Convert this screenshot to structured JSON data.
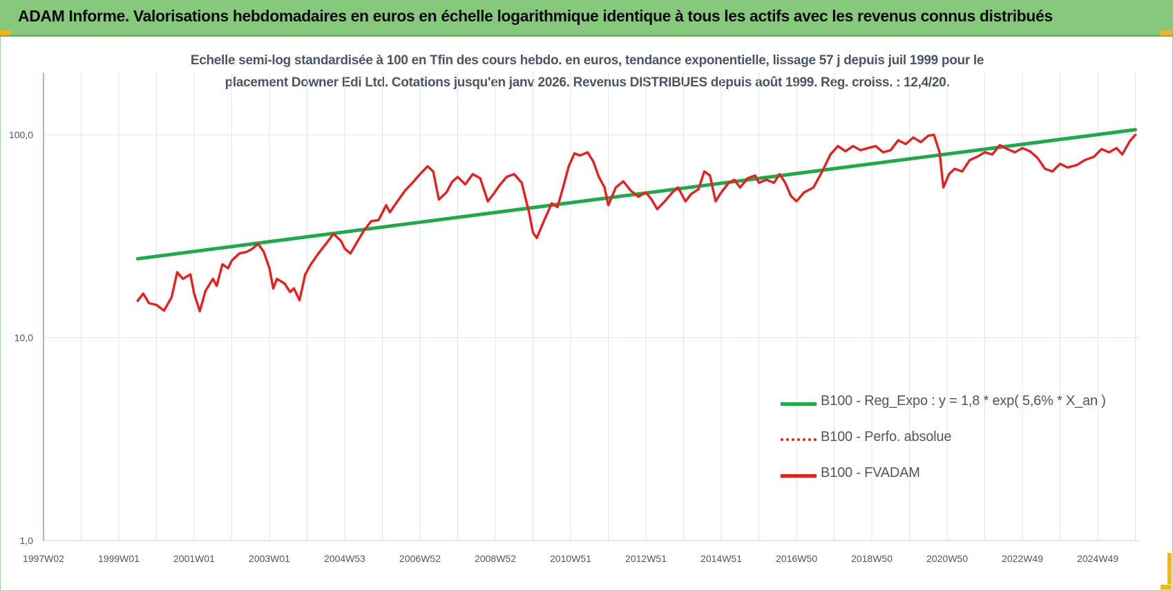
{
  "banner": {
    "title": "ADAM Informe. Valorisations hebdomadaires en euros en échelle logarithmique identique à tous les actifs avec les revenus connus distribués"
  },
  "chart_data": {
    "type": "line",
    "title_line1": "Echelle semi-log standardisée à 100 en Tfin des cours hebdo. en euros, tendance exponentielle, lissage 57 j depuis juil 1999 pour le",
    "title_line2": "placement Downer Edi Ltd. Cotations jusqu'en janv 2026. Revenus DISTRIBUES depuis août 1999. Reg. croiss. : 12,4/20.",
    "y_scale": "log",
    "ylim": [
      1,
      200
    ],
    "y_ticks": [
      {
        "value": 1,
        "label": "1,0"
      },
      {
        "value": 10,
        "label": "10,0"
      },
      {
        "value": 100,
        "label": "100,0"
      }
    ],
    "xlim": [
      1997.0,
      2026.1
    ],
    "x_ticks": [
      {
        "value": 1997.0,
        "label": "1997W02"
      },
      {
        "value": 1999.0,
        "label": "1999W01"
      },
      {
        "value": 2001.0,
        "label": "2001W01"
      },
      {
        "value": 2003.0,
        "label": "2003W01"
      },
      {
        "value": 2005.0,
        "label": "2004W53"
      },
      {
        "value": 2007.0,
        "label": "2006W52"
      },
      {
        "value": 2009.0,
        "label": "2008W52"
      },
      {
        "value": 2011.0,
        "label": "2010W51"
      },
      {
        "value": 2013.0,
        "label": "2012W51"
      },
      {
        "value": 2015.0,
        "label": "2014W51"
      },
      {
        "value": 2017.0,
        "label": "2016W50"
      },
      {
        "value": 2019.0,
        "label": "2018W50"
      },
      {
        "value": 2021.0,
        "label": "2020W50"
      },
      {
        "value": 2023.0,
        "label": "2022W49"
      },
      {
        "value": 2025.0,
        "label": "2024W49"
      }
    ],
    "grid": true,
    "legend_position": "bottom-right",
    "series": [
      {
        "name": "B100 - Reg_Expo : y = 1,8 * exp( 5,6% *  X_an )",
        "color": "#1faa4a",
        "style": "solid",
        "points": [
          [
            1999.5,
            24.5
          ],
          [
            2026.0,
            106
          ]
        ]
      },
      {
        "name": "B100 - Perfo. absolue",
        "color": "#ee1c1c",
        "style": "dotted",
        "points": []
      },
      {
        "name": "B100 - FVADAM",
        "color": "#ee1c1c",
        "style": "solid",
        "points": [
          [
            1999.5,
            15.2
          ],
          [
            1999.65,
            16.5
          ],
          [
            1999.8,
            14.8
          ],
          [
            2000.0,
            14.5
          ],
          [
            2000.2,
            13.6
          ],
          [
            2000.4,
            15.8
          ],
          [
            2000.55,
            21.0
          ],
          [
            2000.7,
            19.5
          ],
          [
            2000.9,
            20.5
          ],
          [
            2001.0,
            16.5
          ],
          [
            2001.15,
            13.5
          ],
          [
            2001.3,
            17.0
          ],
          [
            2001.5,
            19.5
          ],
          [
            2001.6,
            18.0
          ],
          [
            2001.75,
            23.0
          ],
          [
            2001.9,
            22.0
          ],
          [
            2002.0,
            24.0
          ],
          [
            2002.2,
            26.0
          ],
          [
            2002.4,
            26.5
          ],
          [
            2002.55,
            27.5
          ],
          [
            2002.7,
            29.0
          ],
          [
            2002.85,
            26.5
          ],
          [
            2003.0,
            22.0
          ],
          [
            2003.1,
            17.5
          ],
          [
            2003.2,
            19.5
          ],
          [
            2003.4,
            18.5
          ],
          [
            2003.55,
            16.8
          ],
          [
            2003.65,
            17.5
          ],
          [
            2003.8,
            15.3
          ],
          [
            2003.95,
            20.5
          ],
          [
            2004.1,
            23.0
          ],
          [
            2004.3,
            26.0
          ],
          [
            2004.5,
            29.0
          ],
          [
            2004.7,
            32.5
          ],
          [
            2004.9,
            30.0
          ],
          [
            2005.0,
            27.5
          ],
          [
            2005.15,
            26.0
          ],
          [
            2005.3,
            29.0
          ],
          [
            2005.5,
            33.5
          ],
          [
            2005.7,
            37.5
          ],
          [
            2005.9,
            38.0
          ],
          [
            2006.1,
            45.0
          ],
          [
            2006.2,
            41.5
          ],
          [
            2006.4,
            47.0
          ],
          [
            2006.6,
            53.0
          ],
          [
            2006.8,
            58.0
          ],
          [
            2007.0,
            64.0
          ],
          [
            2007.2,
            70.0
          ],
          [
            2007.35,
            66.0
          ],
          [
            2007.5,
            48.0
          ],
          [
            2007.7,
            52.0
          ],
          [
            2007.85,
            58.5
          ],
          [
            2008.0,
            62.0
          ],
          [
            2008.2,
            57.0
          ],
          [
            2008.4,
            64.0
          ],
          [
            2008.6,
            61.0
          ],
          [
            2008.8,
            47.0
          ],
          [
            2008.95,
            51.0
          ],
          [
            2009.1,
            56.0
          ],
          [
            2009.3,
            62.0
          ],
          [
            2009.5,
            64.0
          ],
          [
            2009.7,
            58.0
          ],
          [
            2009.9,
            41.0
          ],
          [
            2010.0,
            33.0
          ],
          [
            2010.1,
            31.0
          ],
          [
            2010.3,
            38.0
          ],
          [
            2010.5,
            46.0
          ],
          [
            2010.65,
            44.0
          ],
          [
            2010.8,
            55.0
          ],
          [
            2010.95,
            70.0
          ],
          [
            2011.1,
            81.0
          ],
          [
            2011.25,
            79.0
          ],
          [
            2011.45,
            82.0
          ],
          [
            2011.6,
            74.0
          ],
          [
            2011.75,
            62.0
          ],
          [
            2011.9,
            55.0
          ],
          [
            2012.0,
            45.0
          ],
          [
            2012.2,
            55.0
          ],
          [
            2012.4,
            59.0
          ],
          [
            2012.6,
            53.0
          ],
          [
            2012.8,
            49.5
          ],
          [
            2013.0,
            52.0
          ],
          [
            2013.15,
            48.0
          ],
          [
            2013.3,
            43.0
          ],
          [
            2013.5,
            47.0
          ],
          [
            2013.7,
            52.0
          ],
          [
            2013.85,
            55.0
          ],
          [
            2014.05,
            47.0
          ],
          [
            2014.2,
            51.0
          ],
          [
            2014.4,
            54.0
          ],
          [
            2014.55,
            66.0
          ],
          [
            2014.7,
            63.0
          ],
          [
            2014.85,
            47.0
          ],
          [
            2015.0,
            52.0
          ],
          [
            2015.2,
            58.0
          ],
          [
            2015.35,
            60.0
          ],
          [
            2015.5,
            55.0
          ],
          [
            2015.7,
            61.0
          ],
          [
            2015.9,
            63.0
          ],
          [
            2016.0,
            58.0
          ],
          [
            2016.2,
            60.0
          ],
          [
            2016.4,
            58.0
          ],
          [
            2016.55,
            64.0
          ],
          [
            2016.7,
            58.0
          ],
          [
            2016.85,
            50.0
          ],
          [
            2017.0,
            47.0
          ],
          [
            2017.2,
            52.0
          ],
          [
            2017.45,
            55.0
          ],
          [
            2017.7,
            67.0
          ],
          [
            2017.9,
            80.0
          ],
          [
            2018.1,
            88.0
          ],
          [
            2018.3,
            83.0
          ],
          [
            2018.5,
            88.0
          ],
          [
            2018.7,
            84.0
          ],
          [
            2018.9,
            86.0
          ],
          [
            2019.1,
            88.0
          ],
          [
            2019.3,
            82.0
          ],
          [
            2019.5,
            84.0
          ],
          [
            2019.7,
            94.0
          ],
          [
            2019.9,
            90.0
          ],
          [
            2020.1,
            97.0
          ],
          [
            2020.3,
            92.0
          ],
          [
            2020.5,
            99.0
          ],
          [
            2020.65,
            100.0
          ],
          [
            2020.8,
            82.0
          ],
          [
            2020.9,
            55.0
          ],
          [
            2021.05,
            64.0
          ],
          [
            2021.2,
            68.0
          ],
          [
            2021.4,
            66.0
          ],
          [
            2021.6,
            75.0
          ],
          [
            2021.8,
            78.0
          ],
          [
            2022.0,
            82.0
          ],
          [
            2022.2,
            80.0
          ],
          [
            2022.4,
            89.0
          ],
          [
            2022.6,
            85.0
          ],
          [
            2022.8,
            82.0
          ],
          [
            2023.0,
            86.0
          ],
          [
            2023.2,
            83.0
          ],
          [
            2023.4,
            77.0
          ],
          [
            2023.6,
            68.0
          ],
          [
            2023.8,
            66.0
          ],
          [
            2024.0,
            72.0
          ],
          [
            2024.2,
            69.0
          ],
          [
            2024.45,
            71.0
          ],
          [
            2024.65,
            75.0
          ],
          [
            2024.9,
            78.0
          ],
          [
            2025.1,
            85.0
          ],
          [
            2025.3,
            82.0
          ],
          [
            2025.5,
            86.0
          ],
          [
            2025.65,
            80.0
          ],
          [
            2025.85,
            93.0
          ],
          [
            2026.0,
            100.0
          ]
        ]
      }
    ]
  }
}
